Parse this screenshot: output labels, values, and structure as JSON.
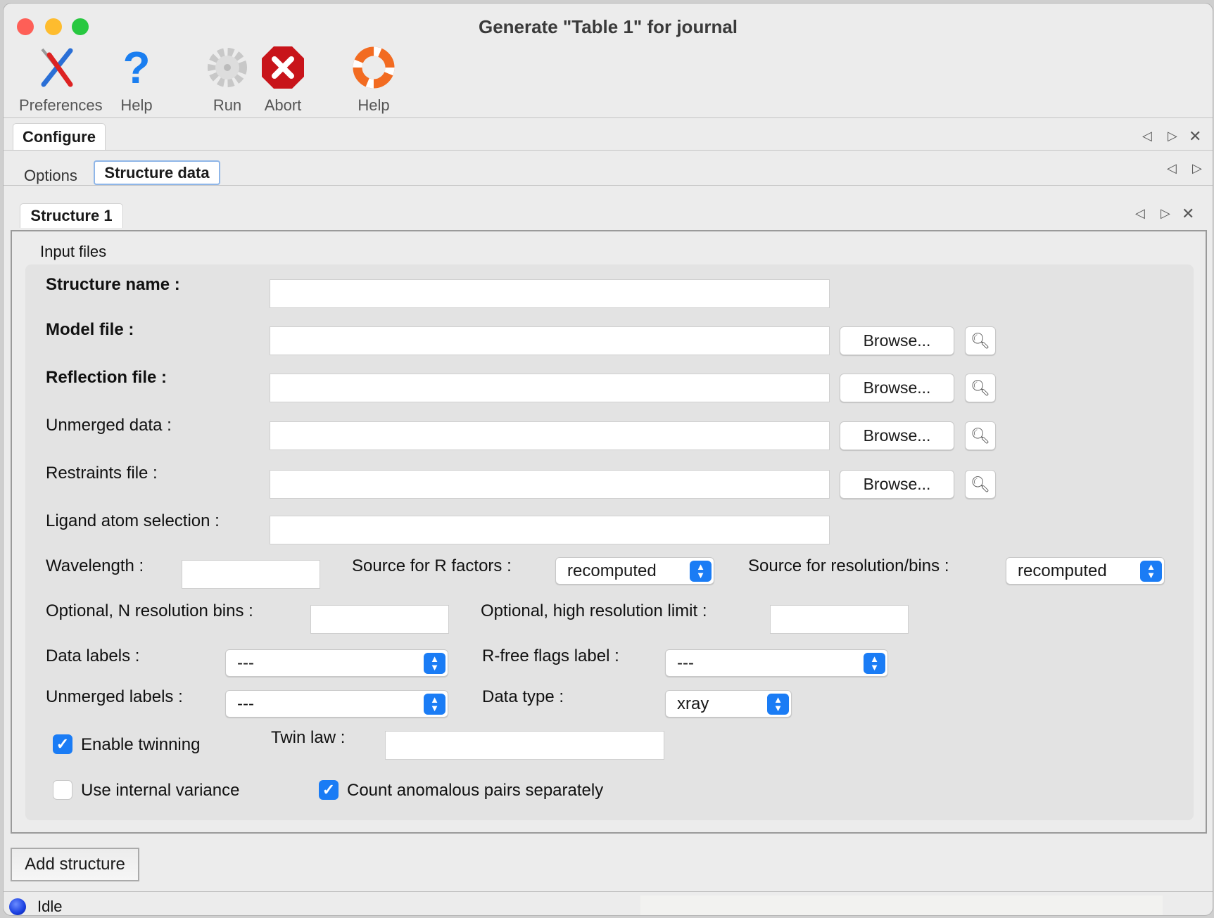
{
  "window": {
    "title": "Generate \"Table 1\" for journal"
  },
  "toolbar": [
    {
      "label": "Preferences",
      "icon": "tools-icon"
    },
    {
      "label": "Help",
      "icon": "question-icon"
    },
    {
      "label": "Run",
      "icon": "gear-icon"
    },
    {
      "label": "Abort",
      "icon": "stop-icon"
    },
    {
      "label": "Help",
      "icon": "lifebuoy-icon"
    }
  ],
  "tabs": {
    "main": "Configure",
    "sub": [
      "Options",
      "Structure data"
    ],
    "active_sub": "Structure data",
    "structure": "Structure 1"
  },
  "group": {
    "title": "Input files"
  },
  "form": {
    "structure_name": {
      "label": "Structure name :",
      "value": ""
    },
    "model_file": {
      "label": "Model file :",
      "value": "",
      "browse": "Browse..."
    },
    "reflection_file": {
      "label": "Reflection file :",
      "value": "",
      "browse": "Browse..."
    },
    "unmerged_data": {
      "label": "Unmerged data :",
      "value": "",
      "browse": "Browse..."
    },
    "restraints_file": {
      "label": "Restraints file :",
      "value": "",
      "browse": "Browse..."
    },
    "ligand_selection": {
      "label": "Ligand atom selection :",
      "value": ""
    },
    "wavelength": {
      "label": "Wavelength :",
      "value": ""
    },
    "r_source": {
      "label": "Source for R factors :",
      "value": "recomputed"
    },
    "res_source": {
      "label": "Source for resolution/bins :",
      "value": "recomputed"
    },
    "n_bins": {
      "label": "Optional, N resolution bins :",
      "value": ""
    },
    "high_res": {
      "label": "Optional, high resolution limit :",
      "value": ""
    },
    "data_labels": {
      "label": "Data labels :",
      "value": "---"
    },
    "rfree_label": {
      "label": "R-free flags label :",
      "value": "---"
    },
    "unmerged_labels": {
      "label": "Unmerged labels :",
      "value": "---"
    },
    "data_type": {
      "label": "Data type :",
      "value": "xray"
    },
    "twinning": {
      "label": "Enable twinning",
      "checked": true
    },
    "twin_law": {
      "label": "Twin law :",
      "value": ""
    },
    "internal_variance": {
      "label": "Use internal variance",
      "checked": false
    },
    "anomalous": {
      "label": "Count anomalous pairs separately",
      "checked": true
    }
  },
  "add_structure": "Add structure",
  "status": {
    "text": "Idle",
    "color": "#1a3fe0"
  },
  "colors": {
    "accent": "#1a7cf5"
  }
}
